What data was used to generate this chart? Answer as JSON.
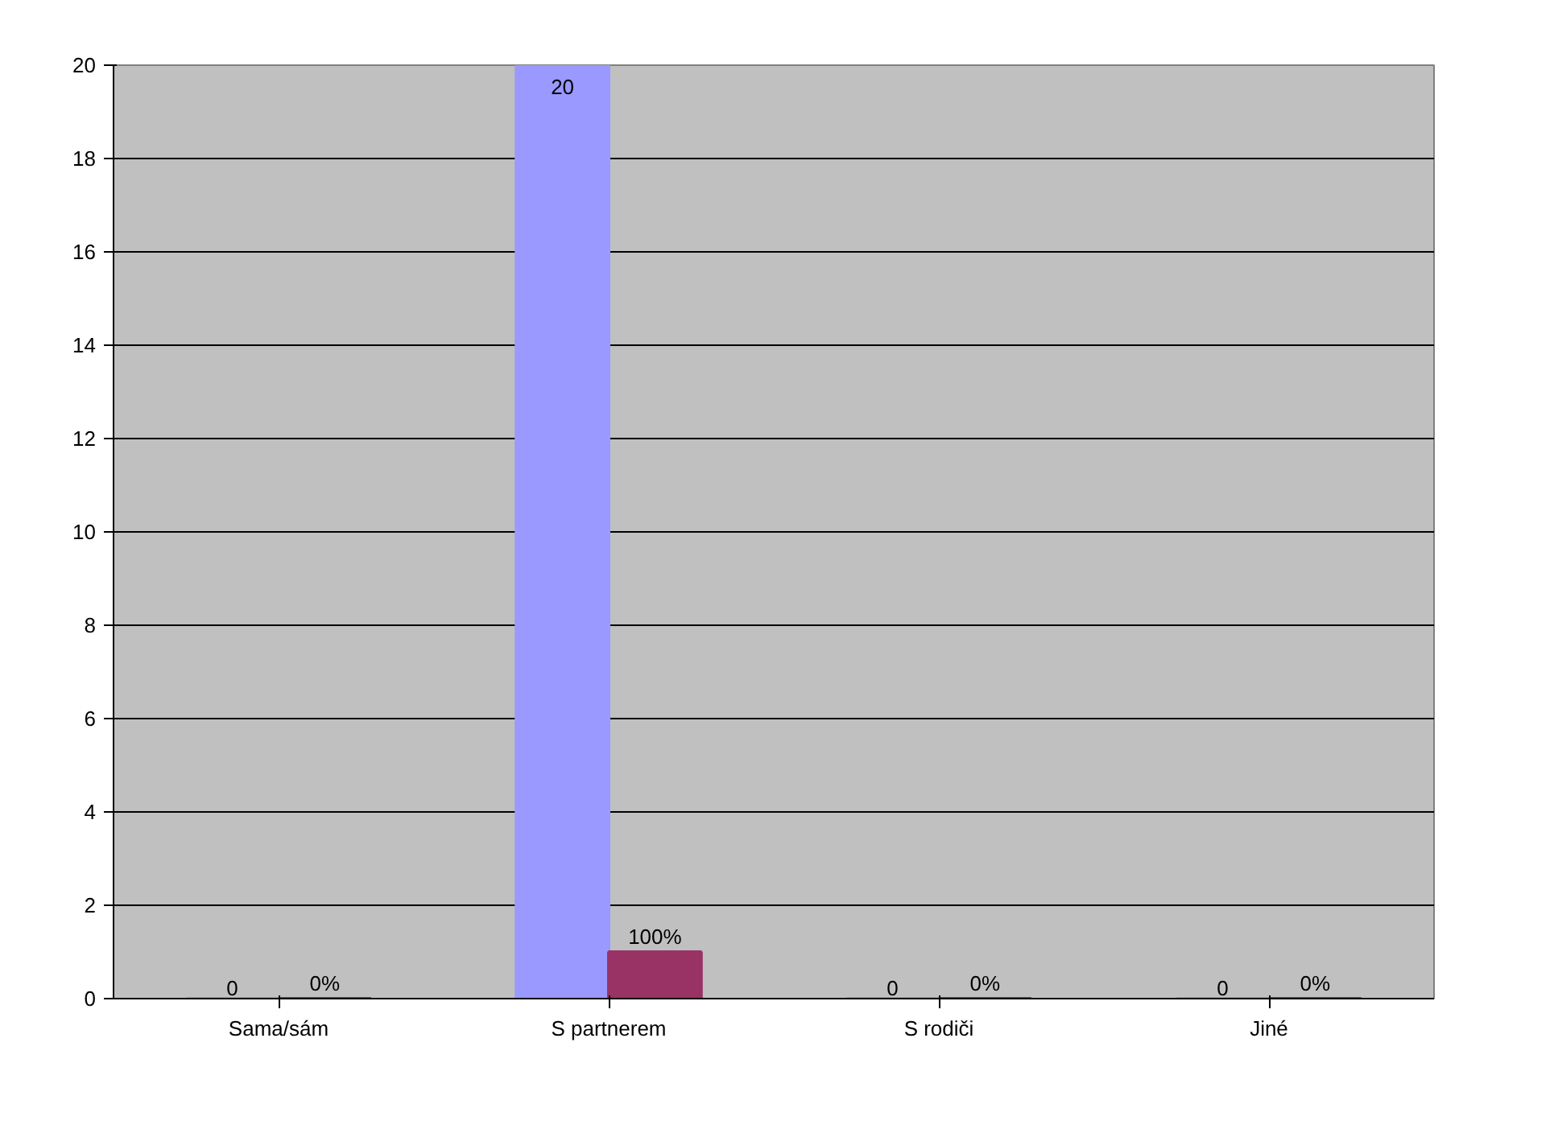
{
  "chart_data": {
    "type": "bar",
    "categories": [
      "Sama/sám",
      "S partnerem",
      "S rodiči",
      "Jiné"
    ],
    "series": [
      {
        "color": "#9999ff",
        "values": [
          0,
          20,
          0,
          0
        ],
        "value_labels": [
          "0",
          "20",
          "0",
          "0"
        ]
      },
      {
        "color": "#993366",
        "values": [
          0,
          1,
          0,
          0
        ],
        "value_labels": [
          "0%",
          "100%",
          "0%",
          "0%"
        ]
      }
    ],
    "ylim": [
      0,
      20
    ],
    "yticks": [
      0,
      2,
      4,
      6,
      8,
      10,
      12,
      14,
      16,
      18,
      20
    ],
    "grid": "y"
  }
}
